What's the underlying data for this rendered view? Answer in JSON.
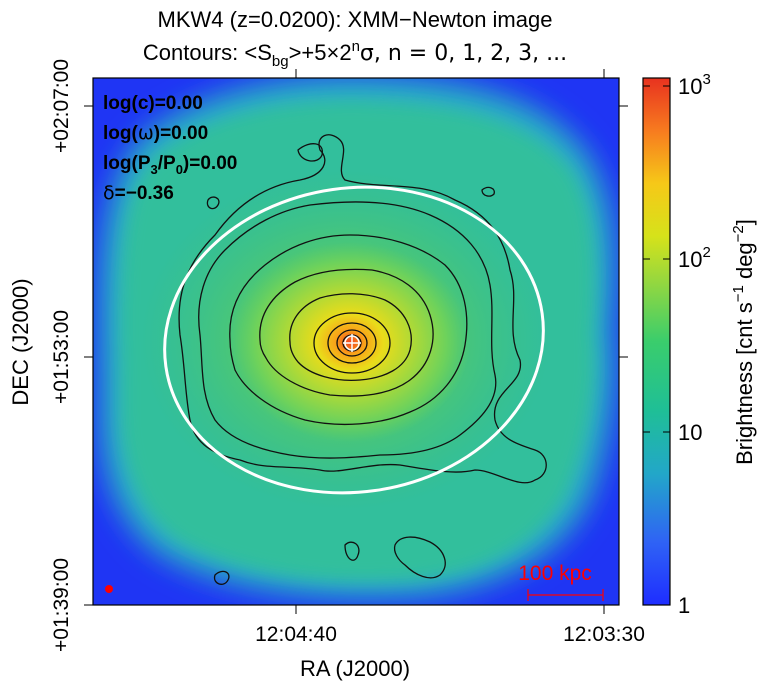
{
  "chart_data": {
    "type": "heatmap",
    "title": {
      "line1": "MKW4 (z=0.0200): XMM−Newton image",
      "line2_prefix": "Contours: <S",
      "line2_sub": "bg",
      "line2_mid": ">+5×2",
      "line2_sup": "n",
      "line2_suffix": "σ, n = 0, 1, 2, 3, ..."
    },
    "xlabel": "RA (J2000)",
    "ylabel": "DEC (J2000)",
    "x_ticks": [
      "12:04:40",
      "12:03:30"
    ],
    "y_ticks": [
      "+01:39:00",
      "+01:53:00",
      "+02:07:00"
    ],
    "colorbar": {
      "label_text": "Brightness [cnt s",
      "label_sup1": "−1",
      "label_mid": " deg",
      "label_sup2": "−2",
      "label_end": "]",
      "scale": "log",
      "range": [
        1,
        1000
      ],
      "ticks": [
        {
          "value": 1,
          "base": "1",
          "exp": ""
        },
        {
          "value": 10,
          "base": "10",
          "exp": ""
        },
        {
          "value": 100,
          "base": "10",
          "exp": "2"
        },
        {
          "value": 1000,
          "base": "10",
          "exp": "3"
        }
      ]
    },
    "annotations": {
      "logc": "log(c)=0.00",
      "logw_pre": "log(",
      "logw_sym": "ω",
      "logw_post": ")=0.00",
      "logp_a": "log(P",
      "logp_s1": "3",
      "logp_b": "/P",
      "logp_s2": "0",
      "logp_c": ")=0.00",
      "delta_sym": "δ",
      "delta_val": "=−0.36",
      "scalebar": "100 kpc"
    },
    "peak_brightness": 1000,
    "background_brightness": 1
  },
  "colors": {
    "frame": "#000000",
    "scalebar": "#ff0000",
    "ellipse": "#ffffff",
    "contour": "#111111"
  }
}
